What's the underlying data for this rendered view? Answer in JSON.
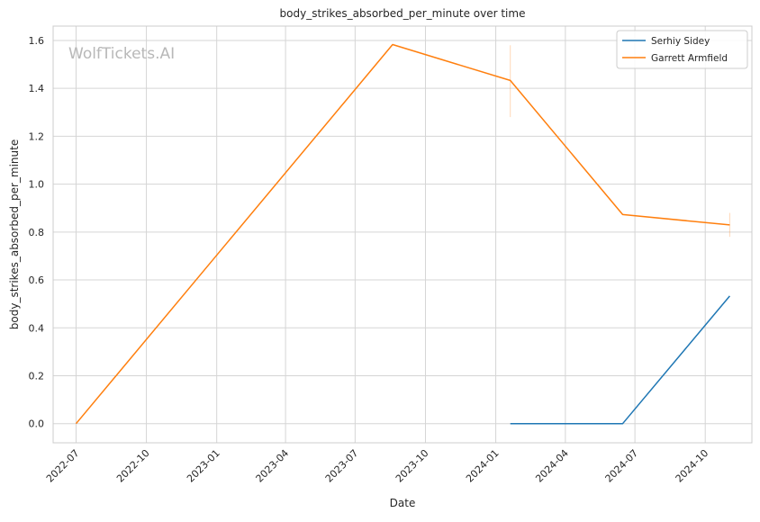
{
  "chart_data": {
    "type": "line",
    "title": "body_strikes_absorbed_per_minute over time",
    "xlabel": "Date",
    "ylabel": "body_strikes_absorbed_per_minute",
    "watermark": "WolfTickets.AI",
    "x_ticks": [
      "2022-07",
      "2022-10",
      "2023-01",
      "2023-04",
      "2023-07",
      "2023-10",
      "2024-01",
      "2024-04",
      "2024-07",
      "2024-10"
    ],
    "y_ticks": [
      "0.0",
      "0.2",
      "0.4",
      "0.6",
      "0.8",
      "1.0",
      "1.2",
      "1.4",
      "1.6"
    ],
    "xlim": [
      "2022-06-01",
      "2024-12-01"
    ],
    "ylim": [
      -0.08,
      1.66
    ],
    "grid": true,
    "legend_position": "top-right",
    "series": [
      {
        "name": "Serhiy Sidey",
        "color": "#1f77b4",
        "points": [
          {
            "x": "2024-01-20",
            "y": 0.0
          },
          {
            "x": "2024-06-15",
            "y": 0.0
          },
          {
            "x": "2024-11-02",
            "y": 0.533
          }
        ],
        "error_bars": []
      },
      {
        "name": "Garrett Armfield",
        "color": "#ff7f0e",
        "points": [
          {
            "x": "2022-07-01",
            "y": 0.0
          },
          {
            "x": "2023-08-19",
            "y": 1.583
          },
          {
            "x": "2024-01-20",
            "y": 1.433
          },
          {
            "x": "2024-06-15",
            "y": 0.873
          },
          {
            "x": "2024-11-02",
            "y": 0.83
          }
        ],
        "error_bars": [
          {
            "x": "2024-01-20",
            "low": 1.28,
            "high": 1.58
          },
          {
            "x": "2024-11-02",
            "low": 0.78,
            "high": 0.88
          }
        ]
      }
    ]
  }
}
